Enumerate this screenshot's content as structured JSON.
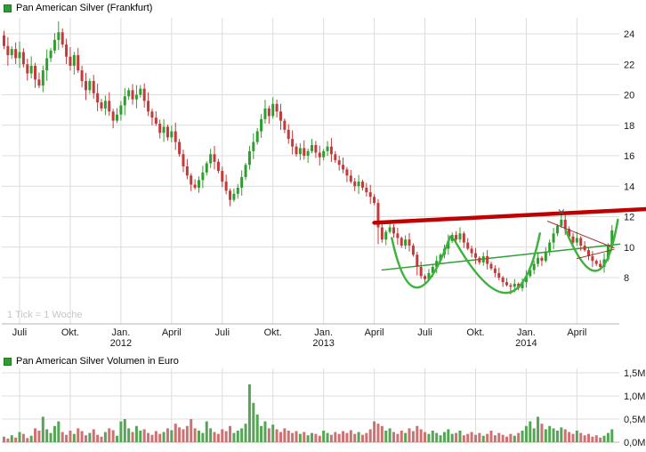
{
  "price_chart": {
    "legend_color": "#339933"
  },
  "volume_chart": {
    "legend_color": "#339933"
  },
  "chart_data": [
    {
      "type": "candlestick",
      "title": "Pan American Silver (Frankfurt)",
      "tick_note": "1 Tick = 1 Woche",
      "x_unit": "week",
      "ylim": [
        5,
        25
      ],
      "y_ticks": [
        {
          "label": "24",
          "value": 24
        },
        {
          "label": "22",
          "value": 22
        },
        {
          "label": "20",
          "value": 20
        },
        {
          "label": "18",
          "value": 18
        },
        {
          "label": "16",
          "value": 16
        },
        {
          "label": "14",
          "value": 14
        },
        {
          "label": "12",
          "value": 12
        },
        {
          "label": "10",
          "value": 10
        },
        {
          "label": "8",
          "value": 8
        }
      ],
      "x_ticks": [
        {
          "week": 4,
          "label": "Juli"
        },
        {
          "week": 17,
          "label": "Okt."
        },
        {
          "week": 30,
          "label": "Jan.",
          "year": "2012"
        },
        {
          "week": 43,
          "label": "April"
        },
        {
          "week": 56,
          "label": "Juli"
        },
        {
          "week": 69,
          "label": "Okt."
        },
        {
          "week": 82,
          "label": "Jan.",
          "year": "2013"
        },
        {
          "week": 95,
          "label": "April"
        },
        {
          "week": 108,
          "label": "Juli"
        },
        {
          "week": 121,
          "label": "Okt."
        },
        {
          "week": 134,
          "label": "Jan.",
          "year": "2014"
        },
        {
          "week": 147,
          "label": "April"
        }
      ],
      "closes": [
        23.2,
        22.6,
        23.0,
        22.4,
        22.8,
        22.0,
        21.4,
        21.9,
        21.0,
        20.6,
        21.6,
        22.4,
        22.9,
        23.6,
        24.1,
        23.3,
        22.5,
        21.9,
        22.6,
        21.6,
        20.9,
        20.3,
        20.9,
        20.1,
        19.5,
        19.1,
        19.6,
        18.9,
        18.3,
        18.7,
        19.3,
        19.9,
        20.3,
        19.7,
        20.0,
        20.4,
        19.6,
        18.9,
        18.5,
        18.1,
        17.5,
        17.9,
        17.2,
        17.6,
        16.9,
        16.1,
        15.3,
        14.7,
        14.1,
        13.9,
        14.4,
        14.9,
        15.5,
        16.1,
        15.6,
        15.0,
        14.3,
        13.7,
        13.1,
        13.5,
        13.9,
        14.6,
        15.4,
        16.3,
        16.9,
        17.6,
        18.4,
        19.1,
        18.6,
        19.4,
        18.9,
        18.3,
        17.7,
        17.1,
        16.6,
        16.1,
        16.5,
        16.0,
        16.3,
        16.7,
        16.2,
        15.9,
        16.3,
        16.6,
        16.1,
        15.7,
        15.4,
        15.1,
        14.7,
        14.3,
        14.0,
        14.3,
        13.9,
        13.6,
        13.3,
        12.9,
        11.3,
        10.5,
        11.0,
        11.3,
        10.9,
        10.6,
        10.1,
        10.5,
        10.1,
        9.5,
        8.7,
        8.1,
        7.9,
        8.3,
        8.7,
        9.1,
        9.5,
        9.9,
        10.4,
        10.8,
        10.5,
        10.9,
        10.3,
        9.9,
        9.6,
        9.3,
        9.0,
        9.4,
        8.9,
        8.6,
        8.3,
        8.0,
        7.7,
        7.5,
        7.4,
        7.6,
        7.3,
        7.7,
        8.1,
        8.5,
        8.9,
        9.3,
        9.1,
        9.7,
        10.3,
        10.9,
        11.4,
        11.8,
        11.2,
        10.7,
        10.3,
        10.6,
        10.1,
        9.8,
        9.4,
        9.1,
        8.9,
        8.7,
        9.2,
        10.1,
        11.1
      ],
      "wick_pattern": [
        0.28,
        0.5,
        0.15,
        0.38,
        0.6,
        0.22,
        0.33,
        0.55,
        0.18,
        0.42
      ],
      "wick_overrides": {
        "0": [
          0.3,
          0.2
        ],
        "13": [
          0.45,
          0.2
        ],
        "96": [
          0.25,
          1.1
        ],
        "106": [
          0.2,
          0.55
        ],
        "130": [
          0.15,
          0.5
        ],
        "143": [
          0.5,
          0.15
        ],
        "156": [
          0.35,
          0.1
        ]
      },
      "colors": {
        "up": "#2f9e2f",
        "down": "#c23a3a",
        "grid": "#dcdcdc",
        "axis": "#b3b3b3",
        "label": "#1a1a1a",
        "watermark": "#c6c6c6"
      },
      "annotations": {
        "trendline_major": {
          "color": "#c00000",
          "width": 4.5,
          "from": {
            "week": 95,
            "price": 11.6
          },
          "to": {
            "week": 165,
            "price": 12.5
          }
        },
        "trendline_support": {
          "color": "#2fa02f",
          "width": 1.5,
          "from": {
            "week": 97,
            "price": 8.5
          },
          "to": {
            "week": 158,
            "price": 10.2
          }
        },
        "cup_color": "#3db33d",
        "cup_width": 2.5,
        "cups": [
          {
            "from": {
              "week": 99.5,
              "price": 10.6
            },
            "bottom": {
              "week": 106,
              "price": 7.35
            },
            "to": {
              "week": 114.5,
              "price": 10.7
            }
          },
          {
            "from": {
              "week": 115.5,
              "price": 10.5
            },
            "bottom": {
              "week": 129,
              "price": 7.0
            },
            "to": {
              "week": 137.5,
              "price": 10.9
            }
          },
          {
            "from": {
              "week": 144,
              "price": 11.2
            },
            "bottom": {
              "week": 152,
              "price": 8.45
            },
            "to": {
              "week": 157.5,
              "price": 11.8
            }
          }
        ],
        "wedge_color": "#a03030",
        "wedge_lines": [
          {
            "from": {
              "week": 139.5,
              "price": 11.7
            },
            "to": {
              "week": 156.5,
              "price": 9.95
            }
          },
          {
            "from": {
              "week": 147,
              "price": 9.25
            },
            "to": {
              "week": 156.5,
              "price": 9.85
            }
          }
        ],
        "marker": {
          "week": 143,
          "price": 12.3
        }
      }
    },
    {
      "type": "bar",
      "title": "Pan American Silver Volumen in Euro",
      "ylim": [
        0,
        1.5
      ],
      "y_ticks": [
        {
          "label": "0,0M",
          "value": 0
        },
        {
          "label": "0,5M",
          "value": 0.5
        },
        {
          "label": "1,0M",
          "value": 1.0
        },
        {
          "label": "1,5M",
          "value": 1.5
        }
      ],
      "values": [
        0.12,
        0.08,
        0.15,
        0.1,
        0.22,
        0.18,
        0.09,
        0.14,
        0.3,
        0.25,
        0.55,
        0.28,
        0.2,
        0.35,
        0.45,
        0.22,
        0.16,
        0.25,
        0.18,
        0.3,
        0.24,
        0.15,
        0.2,
        0.28,
        0.16,
        0.12,
        0.22,
        0.3,
        0.26,
        0.14,
        0.45,
        0.5,
        0.3,
        0.22,
        0.35,
        0.25,
        0.28,
        0.2,
        0.16,
        0.24,
        0.18,
        0.22,
        0.3,
        0.26,
        0.4,
        0.32,
        0.28,
        0.35,
        0.5,
        0.3,
        0.25,
        0.2,
        0.45,
        0.3,
        0.22,
        0.18,
        0.28,
        0.24,
        0.35,
        0.2,
        0.25,
        0.3,
        0.4,
        1.25,
        0.85,
        0.6,
        0.35,
        0.45,
        0.3,
        0.38,
        0.28,
        0.22,
        0.3,
        0.25,
        0.2,
        0.24,
        0.18,
        0.22,
        0.15,
        0.2,
        0.18,
        0.14,
        0.25,
        0.2,
        0.16,
        0.22,
        0.18,
        0.24,
        0.2,
        0.26,
        0.18,
        0.22,
        0.16,
        0.2,
        0.28,
        0.45,
        0.4,
        0.35,
        0.25,
        0.3,
        0.22,
        0.18,
        0.25,
        0.2,
        0.3,
        0.24,
        0.35,
        0.28,
        0.22,
        0.18,
        0.25,
        0.2,
        0.15,
        0.22,
        0.28,
        0.18,
        0.2,
        0.25,
        0.15,
        0.18,
        0.22,
        0.16,
        0.2,
        0.14,
        0.18,
        0.25,
        0.15,
        0.2,
        0.16,
        0.12,
        0.18,
        0.14,
        0.2,
        0.25,
        0.35,
        0.45,
        0.3,
        0.55,
        0.4,
        0.28,
        0.35,
        0.3,
        0.25,
        0.32,
        0.28,
        0.22,
        0.18,
        0.25,
        0.2,
        0.15,
        0.18,
        0.12,
        0.15,
        0.1,
        0.14,
        0.2,
        0.28
      ],
      "colors": {
        "up": "#55a555",
        "down": "#cc7272",
        "grid": "#dcdcdc",
        "axis": "#b3b3b3",
        "label": "#1a1a1a"
      }
    }
  ]
}
